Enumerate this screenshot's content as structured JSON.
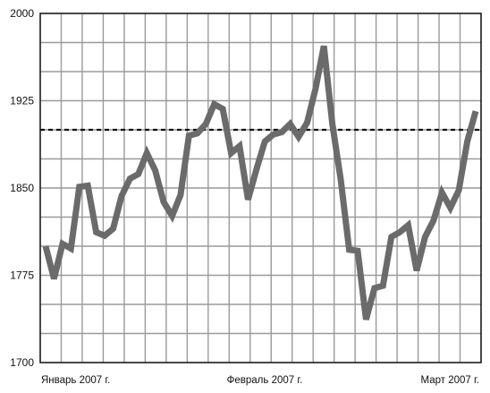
{
  "chart_data": {
    "type": "line",
    "title": "",
    "xlabel": "",
    "ylabel": "",
    "ylim": [
      1700,
      2000
    ],
    "yticks": [
      2000,
      1925,
      1850,
      1775,
      1700
    ],
    "ytick_labels": [
      "2000",
      "1925",
      "1850",
      "1775",
      "1700"
    ],
    "xtick_labels": [
      "Январь 2007 г.",
      "Февраль 2007 г.",
      "Март 2007 г."
    ],
    "grid": true,
    "reference_line": {
      "value": 1900,
      "style": "dashed",
      "color": "#111111"
    },
    "series": [
      {
        "color": "#6b6b6b",
        "values": [
          1800,
          1772,
          1802,
          1798,
          1851,
          1852,
          1812,
          1809,
          1815,
          1843,
          1858,
          1862,
          1880,
          1865,
          1838,
          1826,
          1844,
          1895,
          1897,
          1905,
          1922,
          1918,
          1880,
          1886,
          1840,
          1866,
          1890,
          1896,
          1898,
          1905,
          1894,
          1906,
          1935,
          1972,
          1905,
          1857,
          1797,
          1796,
          1737,
          1764,
          1766,
          1808,
          1812,
          1818,
          1779,
          1808,
          1822,
          1846,
          1833,
          1848,
          1890,
          1916
        ]
      }
    ]
  }
}
